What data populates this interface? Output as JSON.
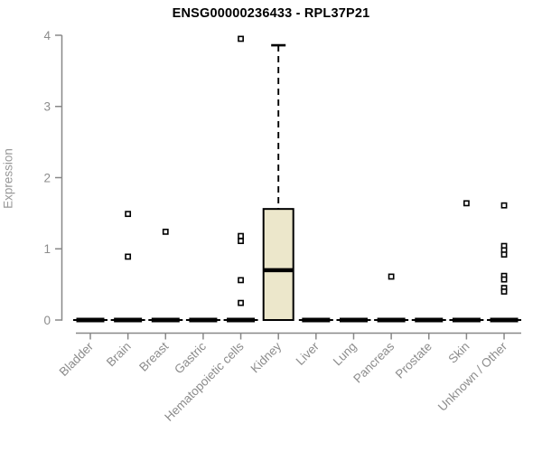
{
  "chart_data": {
    "type": "boxplot",
    "title": "ENSG00000236433 - RPL37P21",
    "ylabel": "Expression",
    "xlabel": "",
    "ylim": [
      0,
      4
    ],
    "yticks": [
      0,
      1,
      2,
      3,
      4
    ],
    "grid": false,
    "legend": "none",
    "categories": [
      "Bladder",
      "Brain",
      "Breast",
      "Gastric",
      "Hematopoietic cells",
      "Kidney",
      "Liver",
      "Lung",
      "Pancreas",
      "Prostate",
      "Skin",
      "Unknown / Other"
    ],
    "boxes": [
      {
        "category": "Bladder",
        "min": 0,
        "q1": 0,
        "median": 0,
        "q3": 0,
        "max": 0,
        "outliers": []
      },
      {
        "category": "Brain",
        "min": 0,
        "q1": 0,
        "median": 0,
        "q3": 0,
        "max": 0,
        "outliers": [
          1.49,
          0.89
        ]
      },
      {
        "category": "Breast",
        "min": 0,
        "q1": 0,
        "median": 0,
        "q3": 0,
        "max": 0,
        "outliers": [
          1.24
        ]
      },
      {
        "category": "Gastric",
        "min": 0,
        "q1": 0,
        "median": 0,
        "q3": 0,
        "max": 0,
        "outliers": []
      },
      {
        "category": "Hematopoietic cells",
        "min": 0,
        "q1": 0,
        "median": 0,
        "q3": 0,
        "max": 0,
        "outliers": [
          3.95,
          1.18,
          1.11,
          0.56,
          0.24
        ]
      },
      {
        "category": "Kidney",
        "min": 0,
        "q1": 0,
        "median": 0.7,
        "q3": 1.56,
        "max": 3.86,
        "outliers": []
      },
      {
        "category": "Liver",
        "min": 0,
        "q1": 0,
        "median": 0,
        "q3": 0,
        "max": 0,
        "outliers": []
      },
      {
        "category": "Lung",
        "min": 0,
        "q1": 0,
        "median": 0,
        "q3": 0,
        "max": 0,
        "outliers": []
      },
      {
        "category": "Pancreas",
        "min": 0,
        "q1": 0,
        "median": 0,
        "q3": 0,
        "max": 0,
        "outliers": [
          0.61
        ]
      },
      {
        "category": "Prostate",
        "min": 0,
        "q1": 0,
        "median": 0,
        "q3": 0,
        "max": 0,
        "outliers": []
      },
      {
        "category": "Skin",
        "min": 0,
        "q1": 0,
        "median": 0,
        "q3": 0,
        "max": 0,
        "outliers": [
          1.64
        ]
      },
      {
        "category": "Unknown / Other",
        "min": 0,
        "q1": 0,
        "median": 0,
        "q3": 0,
        "max": 0,
        "outliers": [
          1.61,
          1.04,
          0.98,
          0.92,
          0.62,
          0.57,
          0.45,
          0.4
        ]
      }
    ],
    "colors": {
      "box_fill": "#ece7cb",
      "box_border": "#000000",
      "median": "#000000",
      "whisker": "#000000",
      "outlier_fill": "#ffffff",
      "outlier_border": "#000000",
      "axis_line": "#888888",
      "tick_label": "#8c8c8c",
      "title": "#000000",
      "background": "#ffffff"
    }
  }
}
